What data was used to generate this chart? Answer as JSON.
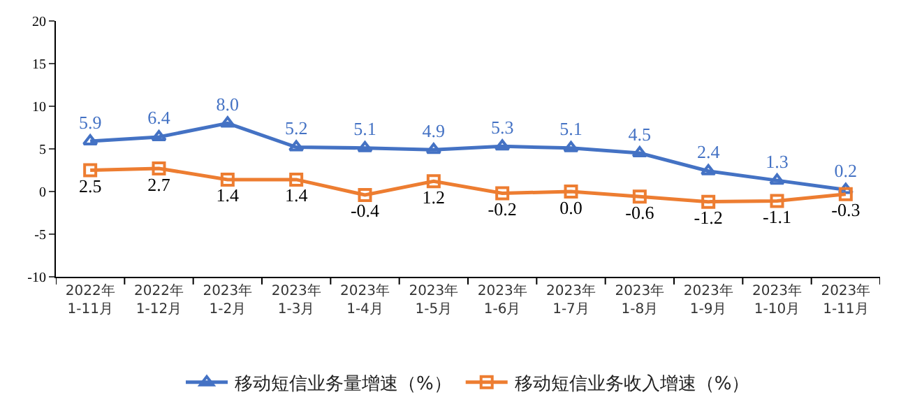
{
  "chart_data": {
    "type": "line",
    "categories": [
      "2022年\n1-11月",
      "2022年\n1-12月",
      "2023年\n1-2月",
      "2023年\n1-3月",
      "2023年\n1-4月",
      "2023年\n1-5月",
      "2023年\n1-6月",
      "2023年\n1-7月",
      "2023年\n1-8月",
      "2023年\n1-9月",
      "2023年\n1-10月",
      "2023年\n1-11月"
    ],
    "series": [
      {
        "name": "移动短信业务量增速（%）",
        "color": "#4472c4",
        "marker": "triangle",
        "values": [
          5.9,
          6.4,
          8.0,
          5.2,
          5.1,
          4.9,
          5.3,
          5.1,
          4.5,
          2.4,
          1.3,
          0.2
        ],
        "value_labels": [
          "5.9",
          "6.4",
          "8.0",
          "5.2",
          "5.1",
          "4.9",
          "5.3",
          "5.1",
          "4.5",
          "2.4",
          "1.3",
          "0.2"
        ]
      },
      {
        "name": "移动短信业务收入增速（%）",
        "color": "#ed7d31",
        "marker": "square",
        "values": [
          2.5,
          2.7,
          1.4,
          1.4,
          -0.4,
          1.2,
          -0.2,
          0.0,
          -0.6,
          -1.2,
          -1.1,
          -0.3
        ],
        "value_labels": [
          "2.5",
          "2.7",
          "1.4",
          "1.4",
          "-0.4",
          "1.2",
          "-0.2",
          "0.0",
          "-0.6",
          "-1.2",
          "-1.1",
          "-0.3"
        ]
      }
    ],
    "ylim": [
      -10,
      20
    ],
    "yticks": [
      -10,
      -5,
      0,
      5,
      10,
      15,
      20
    ],
    "legend": "bottom",
    "line_style": "solid"
  }
}
